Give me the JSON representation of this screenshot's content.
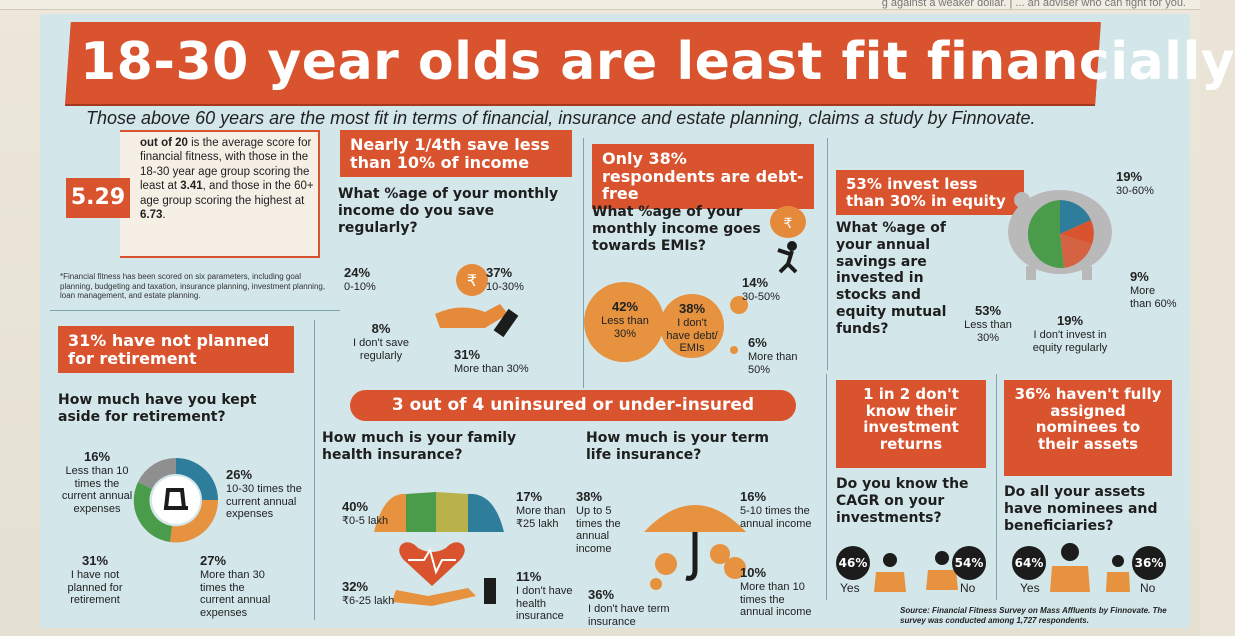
{
  "topstrip": "g against a weaker dollar. | ... an adviser who can fight for you.",
  "title": "18-30 year olds are least fit financially",
  "subtitle": "Those above 60 years are the most fit in terms of financial, insurance and estate planning, claims a study by Finnovate.",
  "fitness": {
    "score": "5.29",
    "text_a": "out of 20",
    "text_b": " is the average score for financial fitness, with those in the 18-30 year age group scoring the least at ",
    "low": "3.41",
    "text_c": ", and those in the 60+ age group scoring the highest at ",
    "high": "6.73",
    "footnote": "*Financial fitness has been scored on six parameters, including goal planning, budgeting and taxation, insurance planning, investment planning, loan management, and estate planning."
  },
  "savings": {
    "tag": "Nearly 1/4th save less than 10% of income",
    "question": "What %age of your monthly income do you save regularly?",
    "items": [
      {
        "pct": "24%",
        "label": "0-10%"
      },
      {
        "pct": "37%",
        "label": "10-30%"
      },
      {
        "pct": "8%",
        "label": "I don't save regularly"
      },
      {
        "pct": "31%",
        "label": "More than 30%"
      }
    ]
  },
  "debt": {
    "tag": "Only 38% respondents are debt-free",
    "question": "What %age of your monthly income goes towards EMIs?",
    "items": [
      {
        "pct": "42%",
        "label": "Less than 30%"
      },
      {
        "pct": "38%",
        "label": "I don't have debt/ EMIs"
      },
      {
        "pct": "14%",
        "label": "30-50%"
      },
      {
        "pct": "6%",
        "label": "More than 50%"
      }
    ]
  },
  "equity": {
    "tag": "53% invest less than 30% in equity",
    "question": "What %age of your annual savings are invested in stocks and equity mutual funds?",
    "items": [
      {
        "pct": "19%",
        "label": "30-60%"
      },
      {
        "pct": "9%",
        "label": "More than 60%"
      },
      {
        "pct": "53%",
        "label": "Less than 30%"
      },
      {
        "pct": "19%",
        "label": "I don't invest in equity regularly"
      }
    ],
    "colors": [
      "#2e7d9a",
      "#4a9b4a",
      "#d9532e",
      "#8f8f8f"
    ]
  },
  "retirement": {
    "tag": "31% have not planned for retirement",
    "question": "How much have you kept aside for retirement?",
    "items": [
      {
        "pct": "16%",
        "label": "Less than 10 times the current annual expenses"
      },
      {
        "pct": "26%",
        "label": "10-30 times the current annual expenses"
      },
      {
        "pct": "31%",
        "label": "I have not planned for retirement"
      },
      {
        "pct": "27%",
        "label": "More than 30 times the current annual expenses"
      }
    ]
  },
  "insurance": {
    "tag": "3 out of 4 uninsured or under-insured",
    "health_question": "How much is your family health insurance?",
    "health": [
      {
        "pct": "40%",
        "label": "₹0-5 lakh"
      },
      {
        "pct": "17%",
        "label": "More than ₹25 lakh"
      },
      {
        "pct": "32%",
        "label": "₹6-25 lakh"
      },
      {
        "pct": "11%",
        "label": "I don't have health insurance"
      }
    ],
    "term_question": "How much is your term life insurance?",
    "term": [
      {
        "pct": "38%",
        "label": "Up to 5 times the annual income"
      },
      {
        "pct": "16%",
        "label": "5-10 times the annual income"
      },
      {
        "pct": "36%",
        "label": "I don't have term insurance"
      },
      {
        "pct": "10%",
        "label": "More than 10 times the annual income"
      }
    ]
  },
  "returns": {
    "tag": "1 in 2 don't know their investment returns",
    "question": "Do you know the CAGR on your investments?",
    "yes_pct": "46%",
    "yes": "Yes",
    "no_pct": "54%",
    "no": "No"
  },
  "nominees": {
    "tag": "36% haven't fully assigned nominees to their assets",
    "question": "Do all your assets have nominees and beneficiaries?",
    "yes_pct": "64%",
    "yes": "Yes",
    "no_pct": "36%",
    "no": "No"
  },
  "source": "Source: Financial Fitness Survey on Mass Affluents by Finnovate. The survey was conducted among 1,727 respondents."
}
